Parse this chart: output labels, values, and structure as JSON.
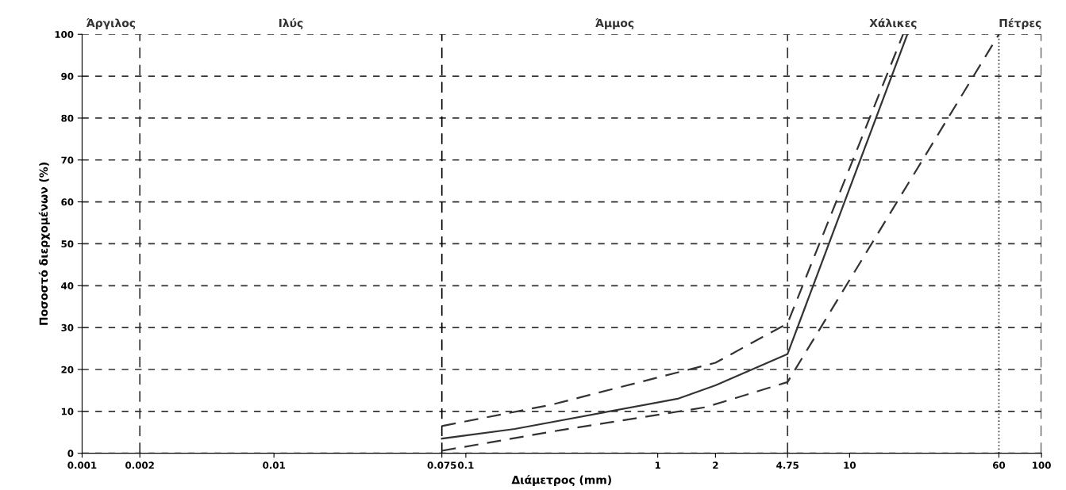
{
  "chart_data": {
    "type": "line",
    "xlabel": "Διάμετρος (mm)",
    "ylabel": "Ποσοστό διερχομένων (%)",
    "log": "x",
    "grid": "y",
    "marker": "none",
    "xlim": [
      0.001,
      100
    ],
    "ylim": [
      0,
      100
    ],
    "xticks": [
      0.001,
      0.002,
      0.01,
      0.075,
      0.1,
      1,
      2,
      4.75,
      10,
      60,
      100
    ],
    "yticks": [
      0,
      10,
      20,
      30,
      40,
      50,
      60,
      70,
      80,
      90,
      100
    ],
    "series": [
      {
        "color": "#333333",
        "line_style": "solid",
        "x": [
          0.075,
          0.18,
          1.27,
          2,
          4.75,
          20
        ],
        "values": [
          3.5,
          5.8,
          13,
          16.2,
          23.7,
          100
        ]
      },
      {
        "color": "#333333",
        "line_style": "dashed",
        "x": [
          0.075,
          0.28,
          2,
          4.75,
          19
        ],
        "values": [
          6.5,
          11.6,
          21.6,
          31,
          100
        ]
      },
      {
        "color": "#333333",
        "line_style": "dashed",
        "x": [
          0.075,
          0.31,
          1.78,
          4.75,
          60
        ],
        "values": [
          0.6,
          5.5,
          11,
          17,
          100
        ]
      }
    ],
    "ref_lines": [
      {
        "axis": "x",
        "value": 0.002,
        "color": "#333333",
        "line_style": "dashed"
      },
      {
        "axis": "x",
        "value": 0.075,
        "color": "#000000",
        "line_style": "dashed"
      },
      {
        "axis": "x",
        "value": 4.75,
        "color": "#333333",
        "line_style": "dashed"
      },
      {
        "axis": "x",
        "value": 60,
        "color": "#333333",
        "line_style": "dotted"
      },
      {
        "axis": "x",
        "value": 100,
        "color": "#000000",
        "line_style": "dashed"
      }
    ],
    "annotations": [
      "Άργιλος",
      "Ιλύς",
      "Άμμος",
      "Χάλικες",
      "Πέτρες"
    ]
  }
}
